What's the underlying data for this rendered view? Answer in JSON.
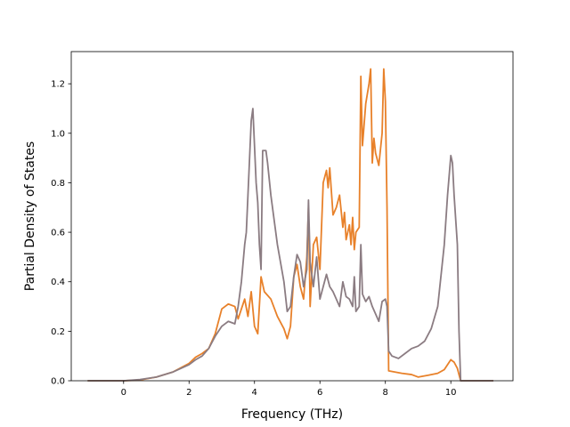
{
  "chart_data": {
    "type": "line",
    "title": "",
    "xlabel": "Frequency (THz)",
    "ylabel": "Partial Density of States",
    "xlim": [
      -1.6,
      11.9
    ],
    "ylim": [
      0.0,
      1.33
    ],
    "xticks": [
      0,
      2,
      4,
      6,
      8,
      10
    ],
    "xtick_labels": [
      "0",
      "2",
      "4",
      "6",
      "8",
      "10"
    ],
    "yticks": [
      0.0,
      0.2,
      0.4,
      0.6,
      0.8,
      1.0,
      1.2
    ],
    "ytick_labels": [
      "0.0",
      "0.2",
      "0.4",
      "0.6",
      "0.8",
      "1.0",
      "1.2"
    ],
    "grid": false,
    "series": [
      {
        "color": "#e8812a",
        "points": [
          [
            -1.1,
            0.0
          ],
          [
            0.0,
            0.0
          ],
          [
            0.5,
            0.003
          ],
          [
            1.0,
            0.015
          ],
          [
            1.5,
            0.035
          ],
          [
            2.0,
            0.07
          ],
          [
            2.2,
            0.095
          ],
          [
            2.4,
            0.11
          ],
          [
            2.6,
            0.13
          ],
          [
            2.8,
            0.19
          ],
          [
            3.0,
            0.29
          ],
          [
            3.2,
            0.31
          ],
          [
            3.4,
            0.3
          ],
          [
            3.5,
            0.25
          ],
          [
            3.6,
            0.29
          ],
          [
            3.7,
            0.33
          ],
          [
            3.8,
            0.26
          ],
          [
            3.9,
            0.36
          ],
          [
            4.0,
            0.22
          ],
          [
            4.1,
            0.19
          ],
          [
            4.2,
            0.42
          ],
          [
            4.3,
            0.36
          ],
          [
            4.5,
            0.33
          ],
          [
            4.7,
            0.26
          ],
          [
            4.9,
            0.21
          ],
          [
            5.0,
            0.17
          ],
          [
            5.1,
            0.22
          ],
          [
            5.2,
            0.42
          ],
          [
            5.3,
            0.47
          ],
          [
            5.4,
            0.38
          ],
          [
            5.5,
            0.33
          ],
          [
            5.6,
            0.5
          ],
          [
            5.65,
            0.7
          ],
          [
            5.7,
            0.3
          ],
          [
            5.8,
            0.55
          ],
          [
            5.9,
            0.58
          ],
          [
            6.0,
            0.45
          ],
          [
            6.1,
            0.8
          ],
          [
            6.2,
            0.85
          ],
          [
            6.25,
            0.78
          ],
          [
            6.3,
            0.86
          ],
          [
            6.4,
            0.67
          ],
          [
            6.5,
            0.7
          ],
          [
            6.6,
            0.75
          ],
          [
            6.7,
            0.62
          ],
          [
            6.75,
            0.68
          ],
          [
            6.8,
            0.57
          ],
          [
            6.9,
            0.63
          ],
          [
            6.95,
            0.55
          ],
          [
            7.0,
            0.66
          ],
          [
            7.05,
            0.53
          ],
          [
            7.1,
            0.6
          ],
          [
            7.2,
            0.62
          ],
          [
            7.25,
            1.23
          ],
          [
            7.3,
            0.95
          ],
          [
            7.4,
            1.12
          ],
          [
            7.5,
            1.2
          ],
          [
            7.55,
            1.26
          ],
          [
            7.6,
            0.88
          ],
          [
            7.65,
            0.98
          ],
          [
            7.7,
            0.92
          ],
          [
            7.8,
            0.87
          ],
          [
            7.9,
            1.0
          ],
          [
            7.95,
            1.26
          ],
          [
            8.0,
            1.13
          ],
          [
            8.05,
            0.7
          ],
          [
            8.1,
            0.04
          ],
          [
            8.5,
            0.03
          ],
          [
            8.8,
            0.025
          ],
          [
            9.0,
            0.015
          ],
          [
            9.3,
            0.022
          ],
          [
            9.6,
            0.03
          ],
          [
            9.8,
            0.045
          ],
          [
            10.0,
            0.085
          ],
          [
            10.1,
            0.075
          ],
          [
            10.2,
            0.05
          ],
          [
            10.3,
            0.0
          ],
          [
            11.3,
            0.0
          ]
        ]
      },
      {
        "color": "#8b7c82",
        "points": [
          [
            -1.1,
            0.0
          ],
          [
            0.0,
            0.0
          ],
          [
            0.5,
            0.005
          ],
          [
            1.0,
            0.015
          ],
          [
            1.5,
            0.035
          ],
          [
            2.0,
            0.065
          ],
          [
            2.2,
            0.085
          ],
          [
            2.4,
            0.1
          ],
          [
            2.6,
            0.13
          ],
          [
            2.8,
            0.18
          ],
          [
            3.0,
            0.22
          ],
          [
            3.2,
            0.24
          ],
          [
            3.4,
            0.23
          ],
          [
            3.5,
            0.3
          ],
          [
            3.6,
            0.4
          ],
          [
            3.7,
            0.55
          ],
          [
            3.75,
            0.6
          ],
          [
            3.8,
            0.75
          ],
          [
            3.85,
            0.9
          ],
          [
            3.9,
            1.05
          ],
          [
            3.95,
            1.1
          ],
          [
            4.0,
            0.95
          ],
          [
            4.05,
            0.8
          ],
          [
            4.1,
            0.72
          ],
          [
            4.15,
            0.55
          ],
          [
            4.2,
            0.45
          ],
          [
            4.25,
            0.93
          ],
          [
            4.35,
            0.93
          ],
          [
            4.4,
            0.88
          ],
          [
            4.5,
            0.75
          ],
          [
            4.7,
            0.55
          ],
          [
            4.9,
            0.4
          ],
          [
            5.0,
            0.28
          ],
          [
            5.1,
            0.3
          ],
          [
            5.2,
            0.42
          ],
          [
            5.3,
            0.51
          ],
          [
            5.4,
            0.48
          ],
          [
            5.5,
            0.38
          ],
          [
            5.6,
            0.45
          ],
          [
            5.65,
            0.73
          ],
          [
            5.7,
            0.48
          ],
          [
            5.8,
            0.38
          ],
          [
            5.9,
            0.5
          ],
          [
            6.0,
            0.33
          ],
          [
            6.1,
            0.38
          ],
          [
            6.2,
            0.43
          ],
          [
            6.3,
            0.38
          ],
          [
            6.4,
            0.36
          ],
          [
            6.5,
            0.33
          ],
          [
            6.6,
            0.3
          ],
          [
            6.7,
            0.4
          ],
          [
            6.8,
            0.34
          ],
          [
            6.9,
            0.33
          ],
          [
            7.0,
            0.3
          ],
          [
            7.05,
            0.42
          ],
          [
            7.1,
            0.28
          ],
          [
            7.2,
            0.3
          ],
          [
            7.25,
            0.55
          ],
          [
            7.3,
            0.35
          ],
          [
            7.4,
            0.32
          ],
          [
            7.5,
            0.34
          ],
          [
            7.6,
            0.3
          ],
          [
            7.7,
            0.27
          ],
          [
            7.8,
            0.24
          ],
          [
            7.9,
            0.32
          ],
          [
            8.0,
            0.33
          ],
          [
            8.05,
            0.3
          ],
          [
            8.1,
            0.12
          ],
          [
            8.2,
            0.1
          ],
          [
            8.4,
            0.09
          ],
          [
            8.6,
            0.11
          ],
          [
            8.8,
            0.13
          ],
          [
            9.0,
            0.14
          ],
          [
            9.2,
            0.16
          ],
          [
            9.4,
            0.21
          ],
          [
            9.6,
            0.3
          ],
          [
            9.8,
            0.55
          ],
          [
            9.9,
            0.75
          ],
          [
            10.0,
            0.91
          ],
          [
            10.05,
            0.88
          ],
          [
            10.1,
            0.75
          ],
          [
            10.2,
            0.55
          ],
          [
            10.25,
            0.2
          ],
          [
            10.3,
            0.0
          ],
          [
            11.3,
            0.0
          ]
        ]
      }
    ]
  }
}
